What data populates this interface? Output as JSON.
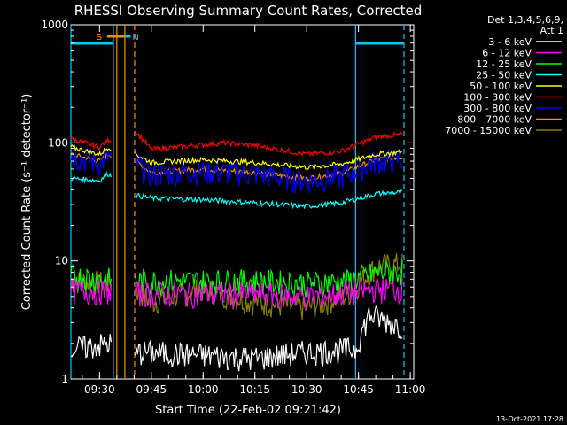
{
  "chart_data": {
    "type": "line",
    "title": "RHESSI Observing Summary Count Rates, Corrected",
    "xlabel": "Start Time (22-Feb-02 09:21:42)",
    "ylabel": "Corrected Count Rate (s⁻¹ detector⁻¹)",
    "y_scale": "log",
    "ylim": [
      1,
      1000
    ],
    "xlim": [
      "09:21:42",
      "11:01:00"
    ],
    "x_ticks": [
      "09:30",
      "09:45",
      "10:00",
      "10:15",
      "10:30",
      "10:45",
      "11:00"
    ],
    "y_ticks": [
      "1",
      "10",
      "100",
      "1000"
    ],
    "legend_header": [
      "Det 1,3,4,5,6,9,",
      "Att 1"
    ],
    "legend_position": "top-right",
    "footer_date": "13-Oct-2021 17:28",
    "flags": {
      "saa": {
        "label": "S",
        "start": "09:32:10",
        "end": "09:37:00",
        "color": "#ff8c00"
      },
      "night": {
        "label": "N",
        "start": "09:37:00",
        "end": "09:39:00",
        "color": "#00c8ff"
      }
    },
    "vertical_markers": [
      {
        "time": "09:21:42",
        "color": "#00c8ff",
        "style": "solid"
      },
      {
        "time": "09:34:00",
        "color": "#00c8ff",
        "style": "solid"
      },
      {
        "time": "09:35:00",
        "color": "#ff8c00",
        "style": "solid"
      },
      {
        "time": "09:37:20",
        "color": "#ff8c00",
        "style": "solid"
      },
      {
        "time": "09:40:10",
        "color": "#ff8c00",
        "style": "dashed"
      },
      {
        "time": "10:44:10",
        "color": "#00c8ff",
        "style": "solid"
      },
      {
        "time": "10:58:10",
        "color": "#00c8ff",
        "style": "dashed"
      }
    ],
    "series": [
      {
        "name": "3 - 6 keV",
        "color": "#ffffff",
        "points": [
          [
            "09:21:42",
            1.8
          ],
          [
            "09:33:00",
            2.0
          ],
          [
            "09:40:30",
            1.5
          ],
          [
            "09:41:00",
            1.7
          ],
          [
            "10:00:00",
            1.6
          ],
          [
            "10:15:00",
            1.5
          ],
          [
            "10:30:00",
            1.7
          ],
          [
            "10:44:00",
            1.8
          ],
          [
            "10:48:00",
            3.5
          ],
          [
            "10:58:00",
            2.8
          ]
        ]
      },
      {
        "name": "6 - 12 keV",
        "color": "#ff00ff",
        "points": [
          [
            "09:21:42",
            5.6
          ],
          [
            "09:33:00",
            5.5
          ],
          [
            "09:40:30",
            5.3
          ],
          [
            "10:00:00",
            5.3
          ],
          [
            "10:15:00",
            5.3
          ],
          [
            "10:30:00",
            5.0
          ],
          [
            "10:42:00",
            5.4
          ],
          [
            "10:50:00",
            5.8
          ],
          [
            "10:58:00",
            5.8
          ]
        ]
      },
      {
        "name": "12 - 25 keV",
        "color": "#00ff00",
        "points": [
          [
            "09:21:42",
            7.5
          ],
          [
            "09:33:00",
            7.0
          ],
          [
            "09:40:30",
            6.8
          ],
          [
            "10:00:00",
            6.8
          ],
          [
            "10:15:00",
            6.8
          ],
          [
            "10:30:00",
            6.5
          ],
          [
            "10:42:00",
            6.8
          ],
          [
            "10:50:00",
            8.0
          ],
          [
            "10:58:00",
            8.2
          ]
        ]
      },
      {
        "name": "25 - 50 keV",
        "color": "#00ffff",
        "points": [
          [
            "09:21:42",
            50
          ],
          [
            "09:30:00",
            48
          ],
          [
            "09:32:30",
            55
          ],
          [
            "09:40:30",
            36
          ],
          [
            "09:45:00",
            34
          ],
          [
            "10:00:00",
            33
          ],
          [
            "10:15:00",
            31
          ],
          [
            "10:30:00",
            29
          ],
          [
            "10:40:00",
            31
          ],
          [
            "10:50:00",
            37
          ],
          [
            "10:58:00",
            38
          ]
        ]
      },
      {
        "name": "50 - 100 keV",
        "color": "#ffff00",
        "points": [
          [
            "09:21:42",
            92
          ],
          [
            "09:30:00",
            80
          ],
          [
            "09:32:30",
            92
          ],
          [
            "09:40:30",
            80
          ],
          [
            "09:45:00",
            68
          ],
          [
            "10:00:00",
            72
          ],
          [
            "10:15:00",
            68
          ],
          [
            "10:30:00",
            62
          ],
          [
            "10:40:00",
            66
          ],
          [
            "10:50:00",
            80
          ],
          [
            "10:58:00",
            84
          ]
        ]
      },
      {
        "name": "100 - 300 keV",
        "color": "#ff0000",
        "points": [
          [
            "09:21:42",
            108
          ],
          [
            "09:30:00",
            92
          ],
          [
            "09:32:30",
            105
          ],
          [
            "09:40:30",
            125
          ],
          [
            "09:45:00",
            88
          ],
          [
            "10:00:00",
            96
          ],
          [
            "10:06:00",
            100
          ],
          [
            "10:15:00",
            95
          ],
          [
            "10:30:00",
            80
          ],
          [
            "10:40:00",
            85
          ],
          [
            "10:50:00",
            112
          ],
          [
            "10:58:00",
            118
          ]
        ]
      },
      {
        "name": "300 - 800 keV",
        "color": "#0000ff",
        "points": [
          [
            "09:21:42",
            78
          ],
          [
            "09:30:00",
            68
          ],
          [
            "09:32:30",
            76
          ],
          [
            "09:40:30",
            68
          ],
          [
            "09:45:00",
            54
          ],
          [
            "10:00:00",
            58
          ],
          [
            "10:15:00",
            55
          ],
          [
            "10:30:00",
            48
          ],
          [
            "10:40:00",
            52
          ],
          [
            "10:50:00",
            70
          ],
          [
            "10:58:00",
            72
          ]
        ]
      },
      {
        "name": "800 - 7000 keV",
        "color": "#ff8c00",
        "points": [
          [
            "09:21:42",
            80
          ],
          [
            "09:30:00",
            70
          ],
          [
            "09:32:30",
            80
          ],
          [
            "09:40:30",
            70
          ],
          [
            "09:45:00",
            56
          ],
          [
            "10:00:00",
            60
          ],
          [
            "10:15:00",
            56
          ],
          [
            "10:30:00",
            50
          ],
          [
            "10:40:00",
            55
          ],
          [
            "10:50:00",
            72
          ],
          [
            "10:58:00",
            76
          ]
        ]
      },
      {
        "name": "7000 - 15000 keV",
        "color": "#8b8000",
        "points": [
          [
            "09:21:42",
            6.8
          ],
          [
            "09:33:00",
            6.5
          ],
          [
            "09:40:30",
            5.8
          ],
          [
            "09:45:00",
            4.5
          ],
          [
            "10:00:00",
            5.8
          ],
          [
            "10:15:00",
            4.5
          ],
          [
            "10:30:00",
            4.0
          ],
          [
            "10:42:00",
            5.2
          ],
          [
            "10:50:00",
            9.0
          ],
          [
            "10:58:00",
            9.5
          ]
        ]
      }
    ]
  }
}
